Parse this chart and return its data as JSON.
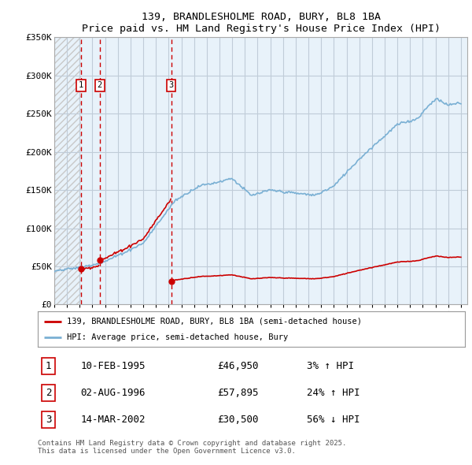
{
  "title": "139, BRANDLESHOLME ROAD, BURY, BL8 1BA",
  "subtitle": "Price paid vs. HM Land Registry's House Price Index (HPI)",
  "ylim": [
    0,
    350000
  ],
  "yticks": [
    0,
    50000,
    100000,
    150000,
    200000,
    250000,
    300000,
    350000
  ],
  "ytick_labels": [
    "£0",
    "£50K",
    "£100K",
    "£150K",
    "£200K",
    "£250K",
    "£300K",
    "£350K"
  ],
  "sale_prices": [
    46950,
    57895,
    30500
  ],
  "sale_labels": [
    "1",
    "2",
    "3"
  ],
  "sale_pct": [
    "3% ↑ HPI",
    "24% ↑ HPI",
    "56% ↓ HPI"
  ],
  "sale_date_labels": [
    "10-FEB-1995",
    "02-AUG-1996",
    "14-MAR-2002"
  ],
  "legend_line1": "139, BRANDLESHOLME ROAD, BURY, BL8 1BA (semi-detached house)",
  "legend_line2": "HPI: Average price, semi-detached house, Bury",
  "footer": "Contains HM Land Registry data © Crown copyright and database right 2025.\nThis data is licensed under the Open Government Licence v3.0.",
  "line_color_red": "#cc0000",
  "line_color_blue": "#7ab0d4",
  "fill_color_blue": "#daeaf5",
  "background_color": "#ffffff",
  "plot_bg_color": "#e8f2fa",
  "hatch_color": "#c8c8c8",
  "grid_color": "#c0ccd8",
  "sale_times": [
    1995.11,
    1996.58,
    2002.2
  ],
  "xmin": 1993.0,
  "xmax": 2025.5
}
